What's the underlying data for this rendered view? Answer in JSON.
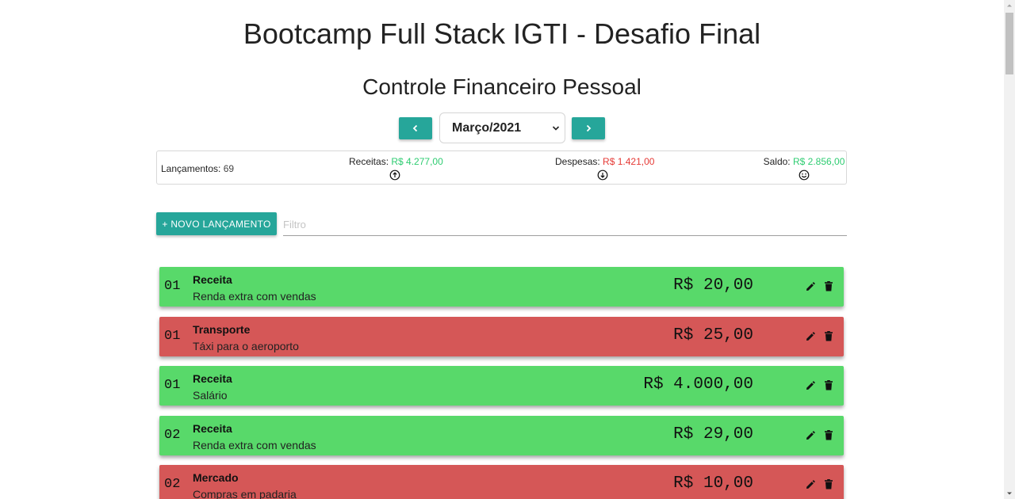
{
  "header": {
    "title": "Bootcamp Full Stack IGTI - Desafio Final",
    "subtitle": "Controle Financeiro Pessoal"
  },
  "period": {
    "selected": "Março/2021",
    "prev_icon": "chevron-left-icon",
    "next_icon": "chevron-right-icon"
  },
  "summary": {
    "count_label": "Lançamentos:",
    "count_value": "69",
    "income_label": "Receitas:",
    "income_value": "R$ 4.277,00",
    "income_icon": "arrow-up-circle-icon",
    "expense_label": "Despesas:",
    "expense_value": "R$ 1.421,00",
    "expense_icon": "arrow-down-circle-icon",
    "balance_label": "Saldo:",
    "balance_value": "R$ 2.856,00",
    "balance_icon": "smiley-icon"
  },
  "actions": {
    "new_label": "+ NOVO LANÇAMENTO",
    "filter_placeholder": "Filtro",
    "filter_value": ""
  },
  "entries": [
    {
      "day": "01",
      "category": "Receita",
      "description": "Renda extra com vendas",
      "amount": "R$ 20,00",
      "type": "income"
    },
    {
      "day": "01",
      "category": "Transporte",
      "description": "Táxi para o aeroporto",
      "amount": "R$ 25,00",
      "type": "expense"
    },
    {
      "day": "01",
      "category": "Receita",
      "description": "Salário",
      "amount": "R$ 4.000,00",
      "type": "income"
    },
    {
      "day": "02",
      "category": "Receita",
      "description": "Renda extra com vendas",
      "amount": "R$ 29,00",
      "type": "income"
    },
    {
      "day": "02",
      "category": "Mercado",
      "description": "Compras em padaria",
      "amount": "R$ 10,00",
      "type": "expense"
    }
  ],
  "colors": {
    "accent": "#26a69a",
    "income_row": "#58d96a",
    "expense_row": "#d55757",
    "income_text": "#2ecc71",
    "expense_text": "#e53935"
  }
}
